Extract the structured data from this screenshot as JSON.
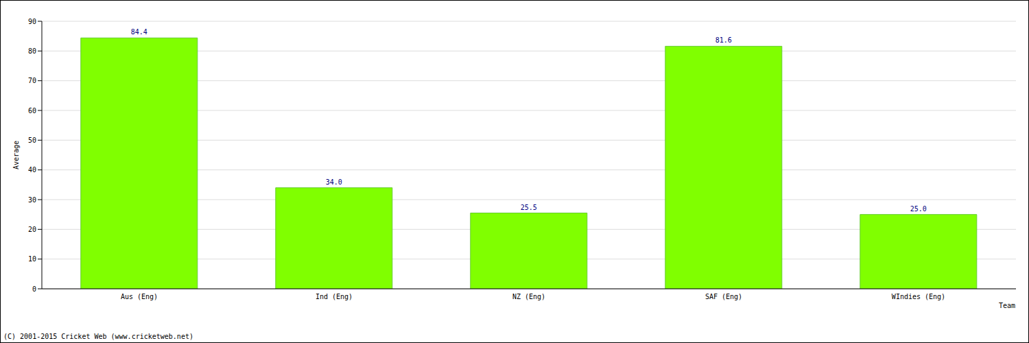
{
  "chart_data": {
    "type": "bar",
    "categories": [
      "Aus (Eng)",
      "Ind (Eng)",
      "NZ (Eng)",
      "SAF (Eng)",
      "WIndies (Eng)"
    ],
    "values": [
      84.4,
      34.0,
      25.5,
      81.6,
      25.0
    ],
    "value_labels": [
      "84.4",
      "34.0",
      "25.5",
      "81.6",
      "25.0"
    ],
    "color": "#80ff00",
    "ylim": [
      0,
      90
    ],
    "yticks": [
      0,
      10,
      20,
      30,
      40,
      50,
      60,
      70,
      80,
      90
    ],
    "grid": true,
    "data_labels": true,
    "y_label": "Average",
    "x_label": "Team",
    "source": "(C) 2001-2015 Cricket Web (www.cricketweb.net)"
  }
}
